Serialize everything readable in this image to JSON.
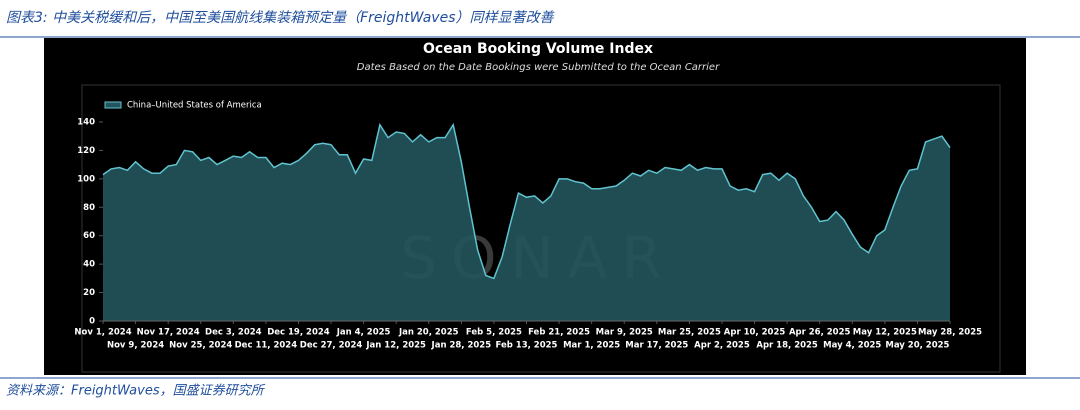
{
  "caption": "图表3: 中美关税缓和后，中国至美国航线集装箱预定量（FreightWaves）同样显著改善",
  "source": "资料来源：FreightWaves，国盛证券研究所",
  "chart_data": {
    "type": "area",
    "title": "Ocean Booking Volume Index",
    "subtitle": "Dates Based on the Date Bookings were Submitted to the Ocean Carrier",
    "watermark": "SONAR",
    "x": [
      "2024-11-01",
      "2024-11-03",
      "2024-11-05",
      "2024-11-07",
      "2024-11-09",
      "2024-11-11",
      "2024-11-13",
      "2024-11-15",
      "2024-11-17",
      "2024-11-19",
      "2024-11-21",
      "2024-11-23",
      "2024-11-25",
      "2024-11-27",
      "2024-11-29",
      "2024-12-01",
      "2024-12-03",
      "2024-12-05",
      "2024-12-07",
      "2024-12-09",
      "2024-12-11",
      "2024-12-13",
      "2024-12-15",
      "2024-12-17",
      "2024-12-19",
      "2024-12-21",
      "2024-12-23",
      "2024-12-25",
      "2024-12-27",
      "2024-12-29",
      "2024-12-31",
      "2025-01-02",
      "2025-01-04",
      "2025-01-06",
      "2025-01-08",
      "2025-01-10",
      "2025-01-12",
      "2025-01-14",
      "2025-01-16",
      "2025-01-18",
      "2025-01-20",
      "2025-01-22",
      "2025-01-24",
      "2025-01-26",
      "2025-01-28",
      "2025-01-30",
      "2025-02-01",
      "2025-02-03",
      "2025-02-05",
      "2025-02-07",
      "2025-02-09",
      "2025-02-11",
      "2025-02-13",
      "2025-02-15",
      "2025-02-17",
      "2025-02-19",
      "2025-02-21",
      "2025-02-23",
      "2025-02-25",
      "2025-02-27",
      "2025-03-01",
      "2025-03-03",
      "2025-03-05",
      "2025-03-07",
      "2025-03-09",
      "2025-03-11",
      "2025-03-13",
      "2025-03-15",
      "2025-03-17",
      "2025-03-19",
      "2025-03-21",
      "2025-03-23",
      "2025-03-25",
      "2025-03-27",
      "2025-03-29",
      "2025-03-31",
      "2025-04-02",
      "2025-04-04",
      "2025-04-06",
      "2025-04-08",
      "2025-04-10",
      "2025-04-12",
      "2025-04-14",
      "2025-04-16",
      "2025-04-18",
      "2025-04-20",
      "2025-04-22",
      "2025-04-24",
      "2025-04-26",
      "2025-04-28",
      "2025-04-30",
      "2025-05-02",
      "2025-05-04",
      "2025-05-06",
      "2025-05-08",
      "2025-05-10",
      "2025-05-12",
      "2025-05-14",
      "2025-05-16",
      "2025-05-18",
      "2025-05-20",
      "2025-05-22",
      "2025-05-24",
      "2025-05-26",
      "2025-05-28"
    ],
    "series": [
      {
        "name": "China–United States of America",
        "color": "#5fc4cf",
        "fill": "#24545d",
        "values": [
          103,
          107,
          108,
          106,
          112,
          107,
          104,
          104,
          109,
          110,
          120,
          119,
          113,
          115,
          110,
          113,
          116,
          115,
          119,
          115,
          115,
          108,
          111,
          110,
          113,
          118,
          124,
          125,
          124,
          117,
          117,
          104,
          114,
          113,
          138,
          129,
          133,
          132,
          126,
          131,
          126,
          129,
          129,
          138,
          112,
          80,
          50,
          32,
          30,
          45,
          68,
          90,
          87,
          88,
          83,
          88,
          100,
          100,
          98,
          97,
          93,
          93,
          94,
          95,
          99,
          104,
          102,
          106,
          104,
          108,
          107,
          106,
          110,
          106,
          108,
          107,
          107,
          95,
          92,
          93,
          91,
          103,
          104,
          99,
          104,
          100,
          88,
          80,
          70,
          71,
          77,
          71,
          61,
          52,
          48,
          60,
          64,
          80,
          95,
          106,
          107,
          126,
          128,
          130,
          122
        ]
      }
    ],
    "xlim": [
      "2024-11-01",
      "2025-05-28"
    ],
    "xticks": [
      {
        "value": "2024-11-01",
        "label": "Nov 1, 2024"
      },
      {
        "value": "2024-11-09",
        "label": "Nov 9, 2024"
      },
      {
        "value": "2024-11-17",
        "label": "Nov 17, 2024"
      },
      {
        "value": "2024-11-25",
        "label": "Nov 25, 2024"
      },
      {
        "value": "2024-12-03",
        "label": "Dec 3, 2024"
      },
      {
        "value": "2024-12-11",
        "label": "Dec 11, 2024"
      },
      {
        "value": "2024-12-19",
        "label": "Dec 19, 2024"
      },
      {
        "value": "2024-12-27",
        "label": "Dec 27, 2024"
      },
      {
        "value": "2025-01-04",
        "label": "Jan 4, 2025"
      },
      {
        "value": "2025-01-12",
        "label": "Jan 12, 2025"
      },
      {
        "value": "2025-01-20",
        "label": "Jan 20, 2025"
      },
      {
        "value": "2025-01-28",
        "label": "Jan 28, 2025"
      },
      {
        "value": "2025-02-05",
        "label": "Feb 5, 2025"
      },
      {
        "value": "2025-02-13",
        "label": "Feb 13, 2025"
      },
      {
        "value": "2025-02-21",
        "label": "Feb 21, 2025"
      },
      {
        "value": "2025-03-01",
        "label": "Mar 1, 2025"
      },
      {
        "value": "2025-03-09",
        "label": "Mar 9, 2025"
      },
      {
        "value": "2025-03-17",
        "label": "Mar 17, 2025"
      },
      {
        "value": "2025-03-25",
        "label": "Mar 25, 2025"
      },
      {
        "value": "2025-04-02",
        "label": "Apr 2, 2025"
      },
      {
        "value": "2025-04-10",
        "label": "Apr 10, 2025"
      },
      {
        "value": "2025-04-18",
        "label": "Apr 18, 2025"
      },
      {
        "value": "2025-04-26",
        "label": "Apr 26, 2025"
      },
      {
        "value": "2025-05-04",
        "label": "May 4, 2025"
      },
      {
        "value": "2025-05-12",
        "label": "May 12, 2025"
      },
      {
        "value": "2025-05-20",
        "label": "May 20, 2025"
      },
      {
        "value": "2025-05-28",
        "label": "May 28, 2025"
      }
    ],
    "ylim": [
      0,
      140
    ],
    "yticks": [
      0,
      20,
      40,
      60,
      80,
      100,
      120,
      140
    ],
    "legend": "top-left"
  }
}
